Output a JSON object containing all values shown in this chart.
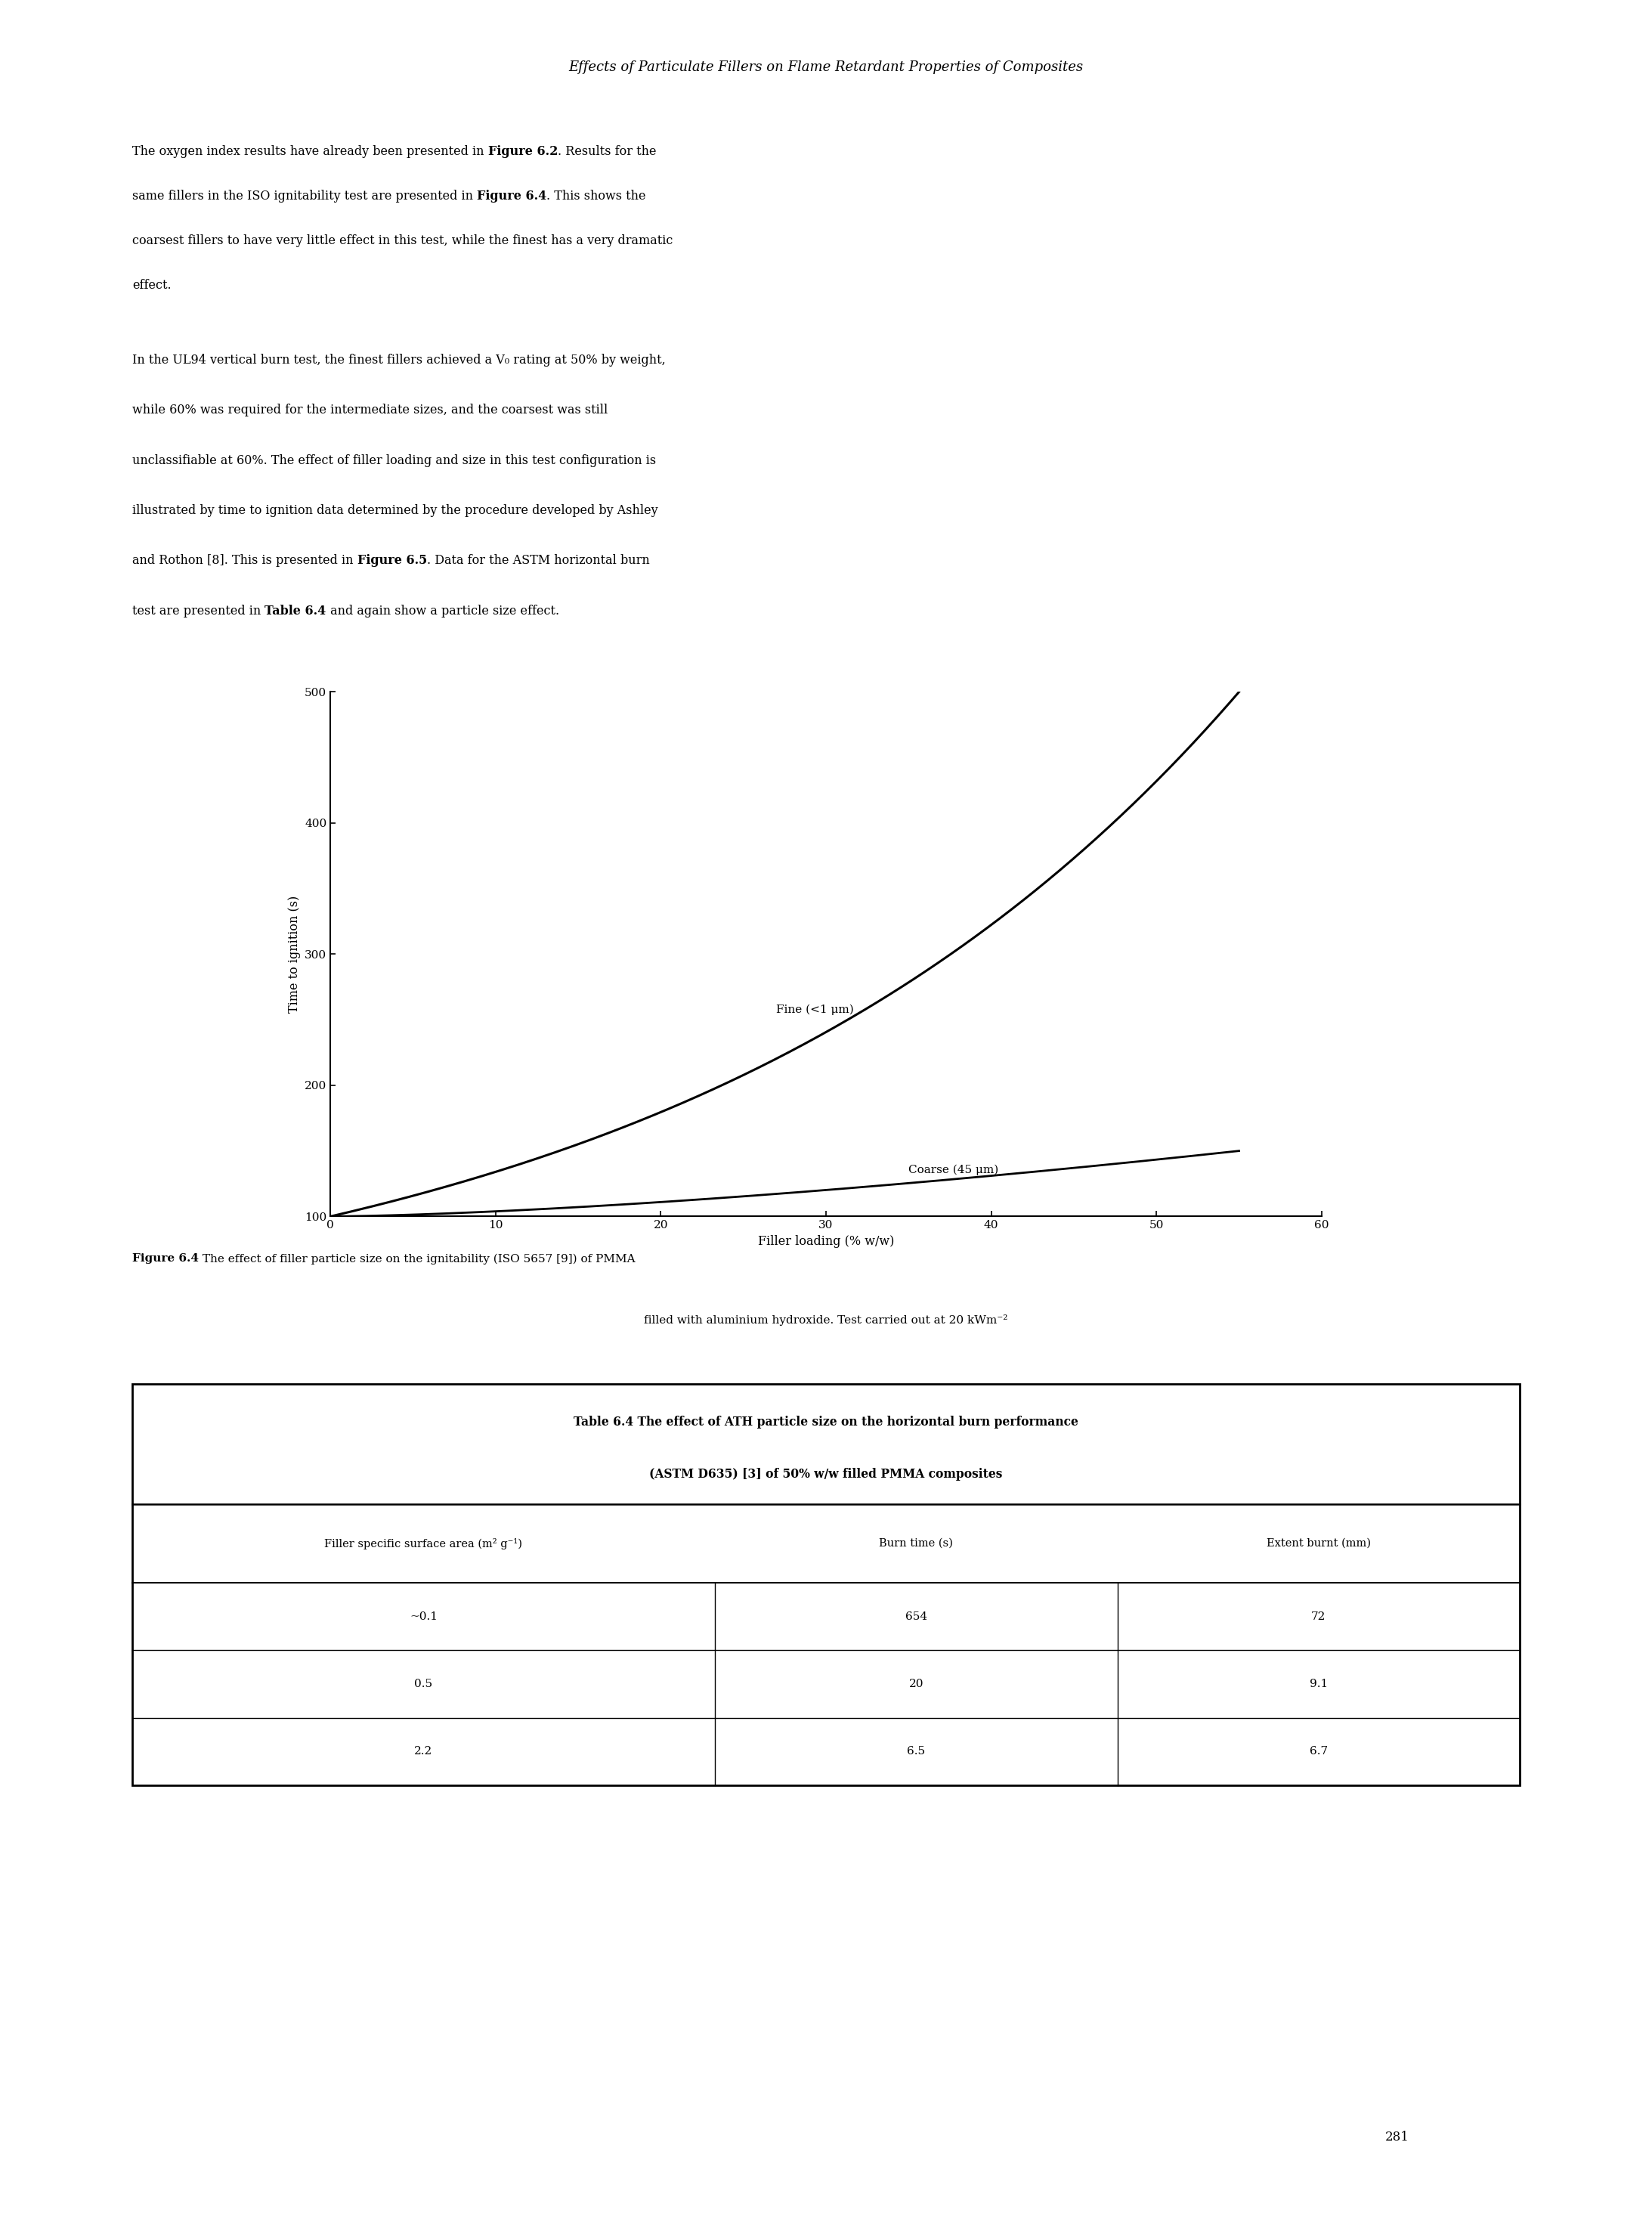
{
  "page_title": "Effects of Particulate Fillers on Flame Retardant Properties of Composites",
  "xlabel": "Filler loading (% w/w)",
  "ylabel": "Time to ignition (s)",
  "ylim": [
    100,
    500
  ],
  "xlim": [
    0,
    60
  ],
  "yticks": [
    100,
    200,
    300,
    400,
    500
  ],
  "xticks": [
    0,
    10,
    20,
    30,
    40,
    50,
    60
  ],
  "fine_label": "Fine (<1 μm)",
  "coarse_label": "Coarse (45 μm)",
  "table_title_line1": "Table 6.4 The effect of ATH particle size on the horizontal burn performance",
  "table_title_line2": "(ASTM D635) [3] of 50% w/w filled PMMA composites",
  "table_headers": [
    "Filler specific surface area (m² g⁻¹)",
    "Burn time (s)",
    "Extent burnt (mm)"
  ],
  "table_rows": [
    [
      "~0.1",
      "654",
      "72"
    ],
    [
      "0.5",
      "20",
      "9.1"
    ],
    [
      "2.2",
      "6.5",
      "6.7"
    ]
  ],
  "page_number": "281",
  "background_color": "#ffffff"
}
